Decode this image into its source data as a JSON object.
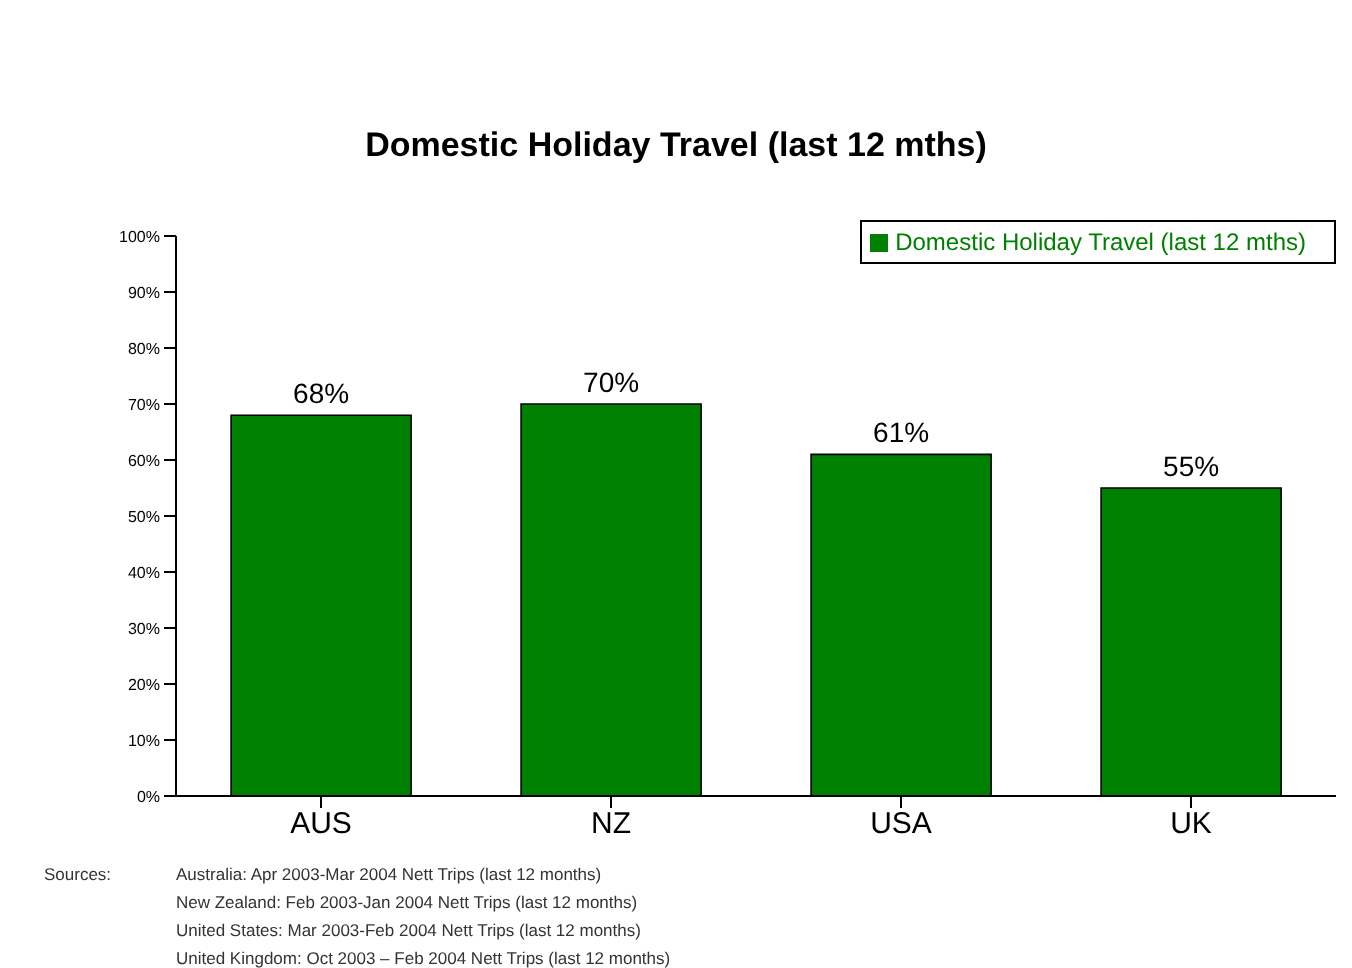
{
  "chart_data": {
    "type": "bar",
    "title": "Domestic Holiday Travel (last 12 mths)",
    "categories": [
      "AUS",
      "NZ",
      "USA",
      "UK"
    ],
    "series": [
      {
        "name": "Domestic Holiday Travel (last 12 mths)",
        "color": "#008000",
        "values": [
          68,
          70,
          61,
          55
        ],
        "value_labels": [
          "68%",
          "70%",
          "61%",
          "55%"
        ]
      }
    ],
    "ylim": [
      0,
      100
    ],
    "yticks": [
      {
        "value": 0,
        "label": "0%"
      },
      {
        "value": 10,
        "label": "10%"
      },
      {
        "value": 20,
        "label": "20%"
      },
      {
        "value": 30,
        "label": "30%"
      },
      {
        "value": 40,
        "label": "40%"
      },
      {
        "value": 50,
        "label": "50%"
      },
      {
        "value": 60,
        "label": "60%"
      },
      {
        "value": 70,
        "label": "70%"
      },
      {
        "value": 80,
        "label": "80%"
      },
      {
        "value": 90,
        "label": "90%"
      },
      {
        "value": 100,
        "label": "100%"
      }
    ],
    "grid": false,
    "legend": "top right",
    "annotations": [
      "Sources:",
      "Australia: Apr 2003-Mar 2004 Nett Trips (last 12 months)",
      "New Zealand: Feb 2003-Jan 2004 Nett Trips (last 12 months)",
      "United States: Mar 2003-Feb 2004 Nett Trips (last 12 months)",
      "United Kingdom: Oct 2003 – Feb 2004  Nett Trips (last 12 months)"
    ]
  }
}
